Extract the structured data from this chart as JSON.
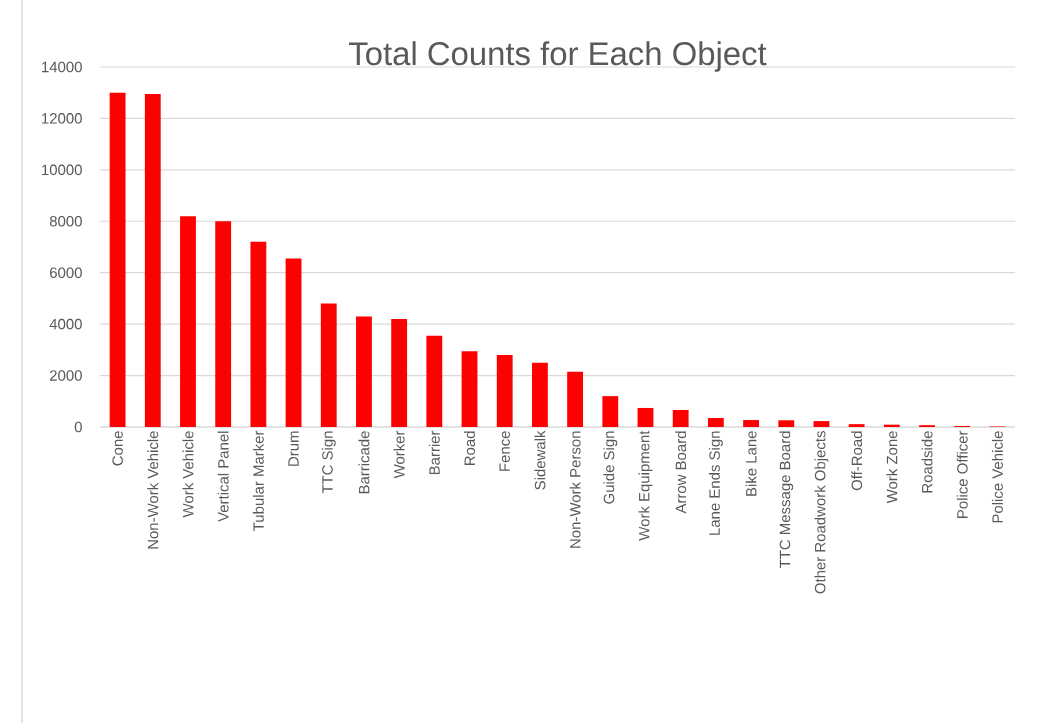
{
  "chart_data": {
    "type": "bar",
    "title": "Total Counts for Each Object",
    "categories": [
      "Cone",
      "Non-Work Vehicle",
      "Work Vehicle",
      "Vertical Panel",
      "Tubular Marker",
      "Drum",
      "TTC Sign",
      "Barricade",
      "Worker",
      "Barrier",
      "Road",
      "Fence",
      "Sidewalk",
      "Non-Work Person",
      "Guide Sign",
      "Work Equipment",
      "Arrow Board",
      "Lane Ends Sign",
      "Bike Lane",
      "TTC Message Board",
      "Other Roadwork Objects",
      "Off-Road",
      "Work Zone",
      "Roadside",
      "Police Officer",
      "Police Vehicle"
    ],
    "values": [
      13000,
      12950,
      8200,
      8000,
      7200,
      6550,
      4800,
      4300,
      4200,
      3550,
      2950,
      2800,
      2500,
      2150,
      1200,
      740,
      660,
      350,
      270,
      260,
      230,
      110,
      90,
      70,
      40,
      20
    ],
    "color": "#ff0000",
    "ylim": [
      0,
      14000
    ],
    "yticks": [
      0,
      2000,
      4000,
      6000,
      8000,
      10000,
      12000,
      14000
    ],
    "grid": "y"
  }
}
